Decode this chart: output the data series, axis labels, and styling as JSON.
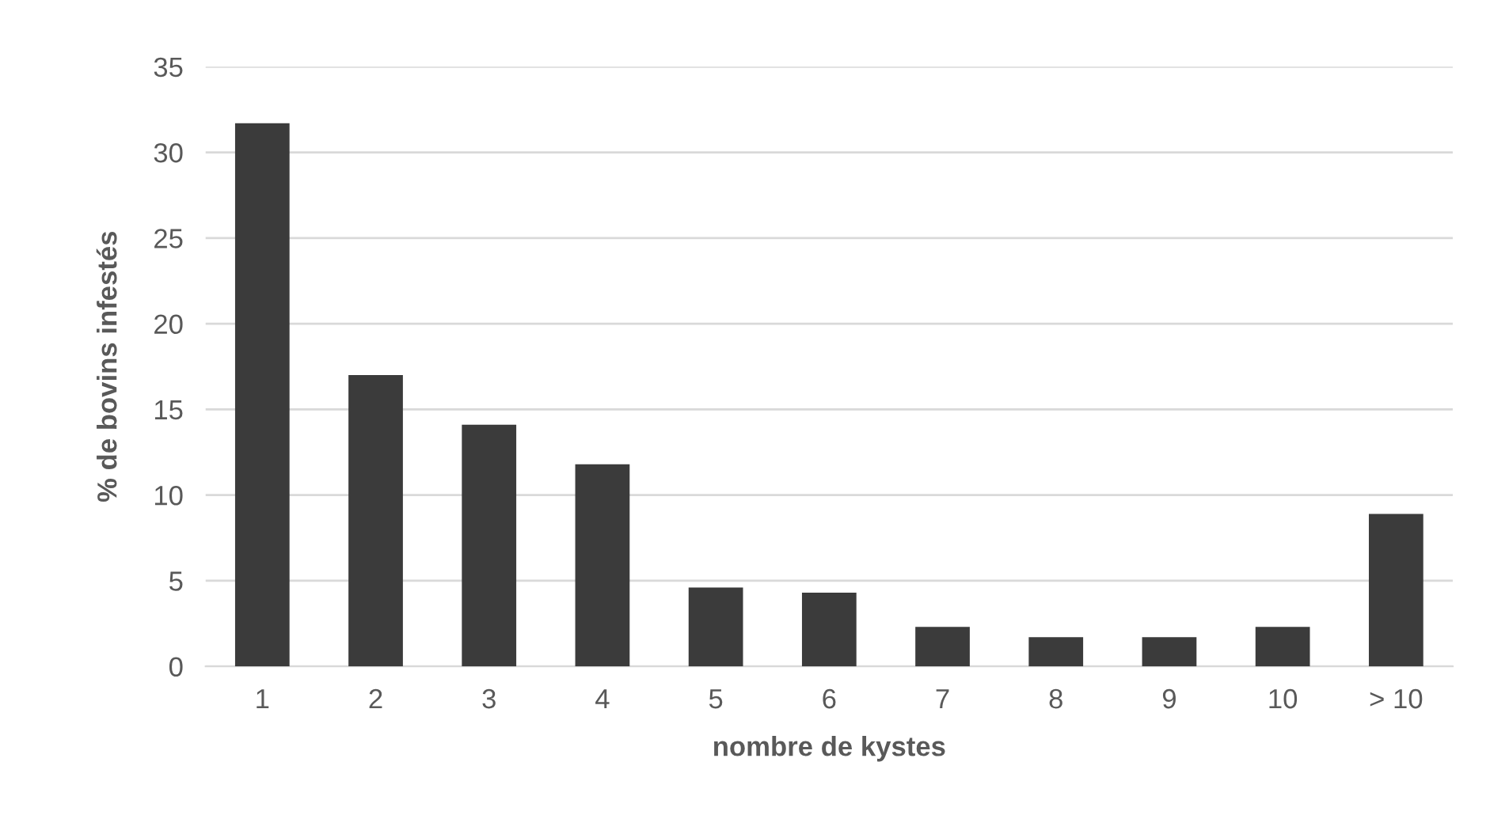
{
  "chart_data": {
    "type": "bar",
    "xlabel": "nombre de kystes",
    "ylabel": "% de bovins infestés",
    "categories": [
      "1",
      "2",
      "3",
      "4",
      "5",
      "6",
      "7",
      "8",
      "9",
      "10",
      "> 10"
    ],
    "values": [
      31.7,
      17.0,
      14.1,
      11.8,
      4.6,
      4.3,
      2.3,
      1.7,
      1.7,
      2.3,
      8.9
    ],
    "color": "#3b3b3b",
    "ylim": [
      0,
      35
    ],
    "yticks": [
      0,
      5,
      10,
      15,
      20,
      25,
      30,
      35
    ],
    "grid": "y",
    "legend": false
  }
}
